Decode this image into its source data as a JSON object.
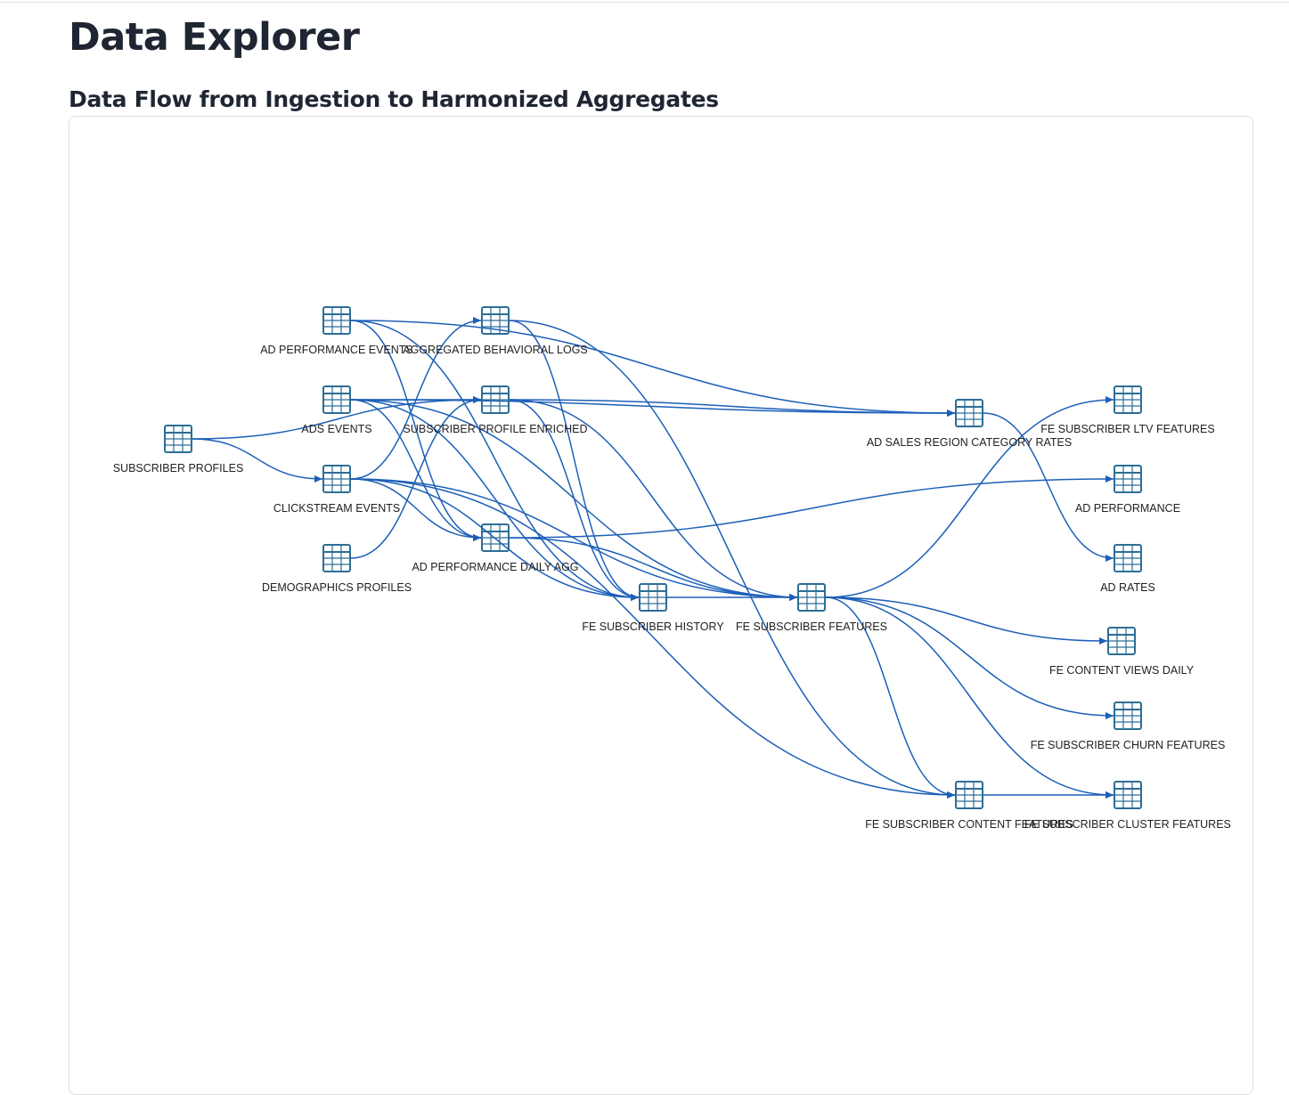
{
  "page": {
    "title": "Data Explorer",
    "section_title": "Data Flow from Ingestion to Harmonized Aggregates"
  },
  "colors": {
    "edge": "#1c5fb8",
    "icon": "#2c6e96",
    "card_border": "#dcdfe3",
    "text": "#1f2633"
  },
  "graph": {
    "node_icon": "table-icon",
    "nodes": [
      {
        "id": "ad_performance_events",
        "label": "AD PERFORMANCE EVENTS"
      },
      {
        "id": "aggregated_behavioral_logs",
        "label": "AGGREGATED BEHAVIORAL LOGS"
      },
      {
        "id": "ads_events",
        "label": "ADS EVENTS"
      },
      {
        "id": "subscriber_profile_enriched",
        "label": "SUBSCRIBER PROFILE ENRICHED"
      },
      {
        "id": "subscriber_profiles",
        "label": "SUBSCRIBER PROFILES"
      },
      {
        "id": "clickstream_events",
        "label": "CLICKSTREAM EVENTS"
      },
      {
        "id": "demographics_profiles",
        "label": "DEMOGRAPHICS PROFILES"
      },
      {
        "id": "ad_performance_daily_agg",
        "label": "AD PERFORMANCE DAILY AGG"
      },
      {
        "id": "fe_subscriber_history",
        "label": "FE SUBSCRIBER HISTORY"
      },
      {
        "id": "fe_subscriber_features",
        "label": "FE SUBSCRIBER FEATURES"
      },
      {
        "id": "ad_sales_region_category_rates",
        "label": "AD SALES REGION CATEGORY RATES"
      },
      {
        "id": "fe_subscriber_ltv_features",
        "label": "FE SUBSCRIBER LTV FEATURES"
      },
      {
        "id": "ad_performance",
        "label": "AD PERFORMANCE"
      },
      {
        "id": "ad_rates",
        "label": "AD RATES"
      },
      {
        "id": "fe_content_views_daily",
        "label": "FE CONTENT VIEWS DAILY"
      },
      {
        "id": "fe_subscriber_churn_features",
        "label": "FE SUBSCRIBER CHURN FEATURES"
      },
      {
        "id": "fe_subscriber_content_features",
        "label": "FE SUBSCRIBER CONTENT FEATURES"
      },
      {
        "id": "fe_subscriber_cluster_features",
        "label": "FE SUBSCRIBER CLUSTER FEATURES"
      }
    ],
    "edges": [
      [
        "subscriber_profiles",
        "subscriber_profile_enriched"
      ],
      [
        "subscriber_profiles",
        "clickstream_events"
      ],
      [
        "ad_performance_events",
        "ad_sales_region_category_rates"
      ],
      [
        "ad_performance_events",
        "ad_performance_daily_agg"
      ],
      [
        "ad_performance_events",
        "fe_subscriber_history"
      ],
      [
        "ads_events",
        "subscriber_profile_enriched"
      ],
      [
        "ads_events",
        "ad_sales_region_category_rates"
      ],
      [
        "ads_events",
        "ad_performance_daily_agg"
      ],
      [
        "ads_events",
        "fe_subscriber_history"
      ],
      [
        "ads_events",
        "fe_subscriber_features"
      ],
      [
        "clickstream_events",
        "aggregated_behavioral_logs"
      ],
      [
        "clickstream_events",
        "ad_performance_daily_agg"
      ],
      [
        "clickstream_events",
        "fe_subscriber_history"
      ],
      [
        "clickstream_events",
        "fe_subscriber_features"
      ],
      [
        "clickstream_events",
        "fe_subscriber_content_features"
      ],
      [
        "demographics_profiles",
        "subscriber_profile_enriched"
      ],
      [
        "aggregated_behavioral_logs",
        "fe_subscriber_history"
      ],
      [
        "aggregated_behavioral_logs",
        "fe_subscriber_content_features"
      ],
      [
        "subscriber_profile_enriched",
        "ad_sales_region_category_rates"
      ],
      [
        "subscriber_profile_enriched",
        "fe_subscriber_history"
      ],
      [
        "subscriber_profile_enriched",
        "fe_subscriber_features"
      ],
      [
        "ad_performance_daily_agg",
        "ad_performance"
      ],
      [
        "ad_performance_daily_agg",
        "fe_subscriber_features"
      ],
      [
        "fe_subscriber_history",
        "fe_subscriber_features"
      ],
      [
        "fe_subscriber_features",
        "fe_subscriber_ltv_features"
      ],
      [
        "fe_subscriber_features",
        "fe_content_views_daily"
      ],
      [
        "fe_subscriber_features",
        "fe_subscriber_churn_features"
      ],
      [
        "fe_subscriber_features",
        "fe_subscriber_content_features"
      ],
      [
        "fe_subscriber_features",
        "fe_subscriber_cluster_features"
      ],
      [
        "ad_sales_region_category_rates",
        "ad_rates"
      ],
      [
        "fe_subscriber_content_features",
        "fe_subscriber_cluster_features"
      ]
    ]
  }
}
